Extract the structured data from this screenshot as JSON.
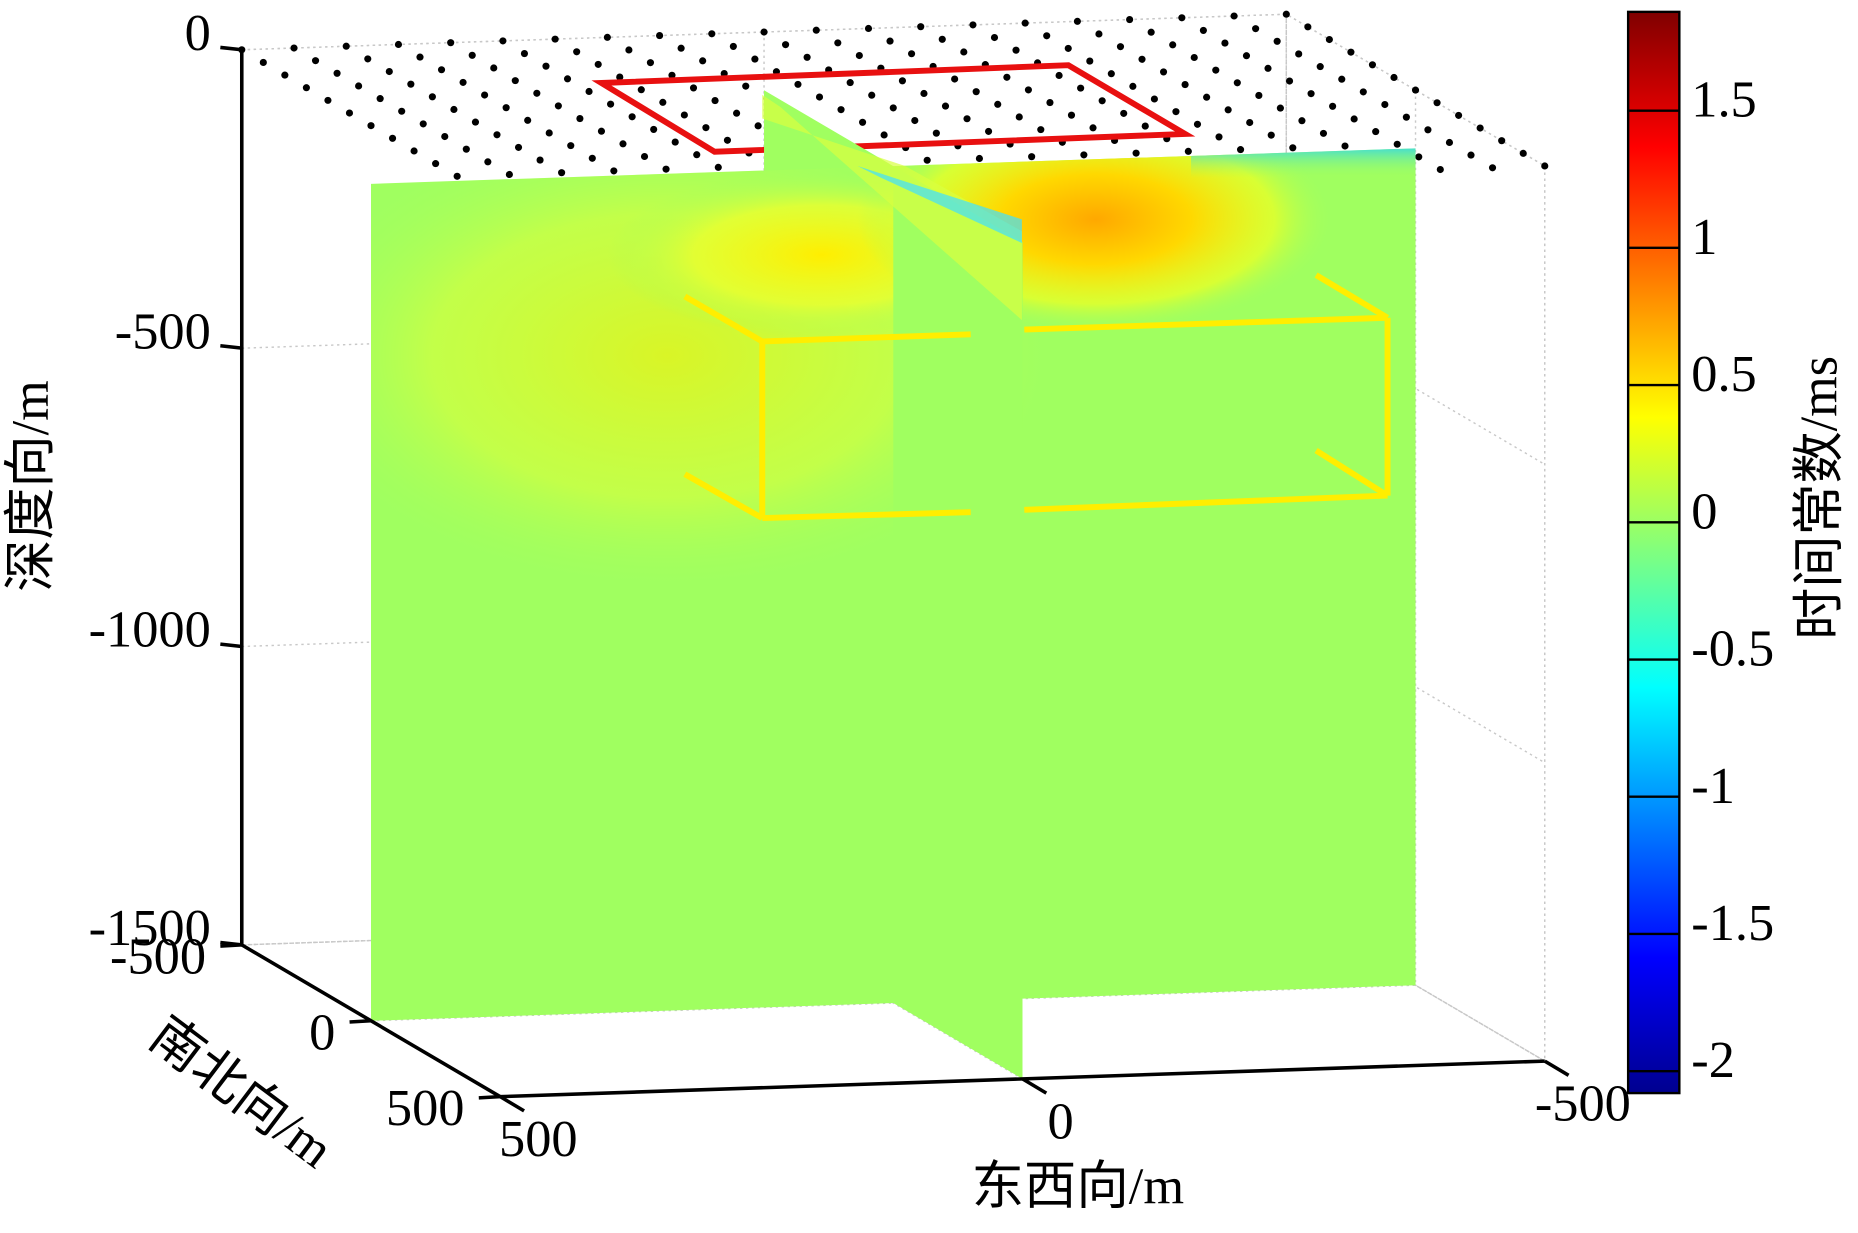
{
  "chart_data": {
    "type": "slice3d",
    "xlabel": "东西向/m",
    "ylabel": "南北向/m",
    "zlabel": "深度向/m",
    "colorbar_label": "时间常数/ms",
    "xlim": [
      500,
      -500
    ],
    "xticks": [
      500,
      0,
      -500
    ],
    "ylim": [
      -500,
      500
    ],
    "yticks": [
      -500,
      0,
      500
    ],
    "zlim": [
      -1500,
      0
    ],
    "zticks": [
      0,
      -500,
      -1000,
      -1500
    ],
    "clim": [
      -2.08,
      1.86
    ],
    "cticks": [
      1.5,
      1,
      0.5,
      0,
      -0.5,
      -1,
      -1.5,
      -2
    ],
    "colormap": "jet",
    "grid": true
  }
}
